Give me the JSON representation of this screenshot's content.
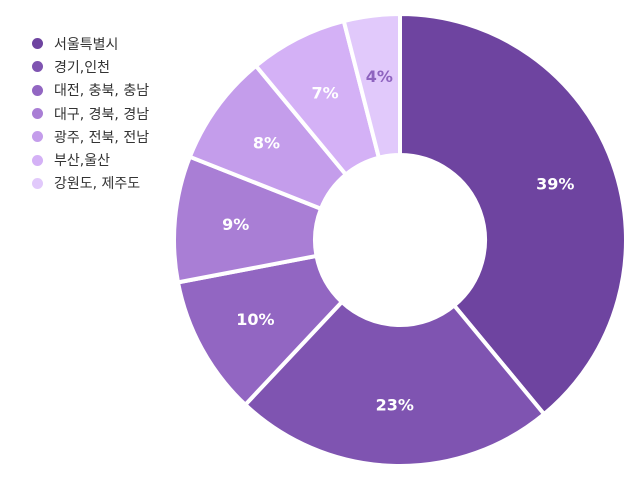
{
  "chart_data": {
    "type": "pie",
    "donut": true,
    "legend_position": "top-left",
    "categories": [
      "서울특별시",
      "경기,인천",
      "대전, 충북, 충남",
      "대구, 경북, 경남",
      "광주, 전북, 전남",
      "부산,울산",
      "강원도, 제주도"
    ],
    "values": [
      39,
      23,
      10,
      9,
      8,
      7,
      4
    ],
    "labels": [
      "39%",
      "23%",
      "10%",
      "9%",
      "8%",
      "7%",
      "4%"
    ],
    "colors": [
      "#6e44a0",
      "#7f54b1",
      "#9266c2",
      "#a97ed5",
      "#c49deb",
      "#d4b1f6",
      "#e1c9fb"
    ],
    "legend_colors": [
      "#6e44a0",
      "#7f54b1",
      "#9266c2",
      "#a97ed5",
      "#c49deb",
      "#d4b1f6",
      "#e1c9fb"
    ],
    "label_colors": [
      "#ffffff",
      "#ffffff",
      "#ffffff",
      "#ffffff",
      "#ffffff",
      "#ffffff",
      "#8e63bf"
    ]
  }
}
